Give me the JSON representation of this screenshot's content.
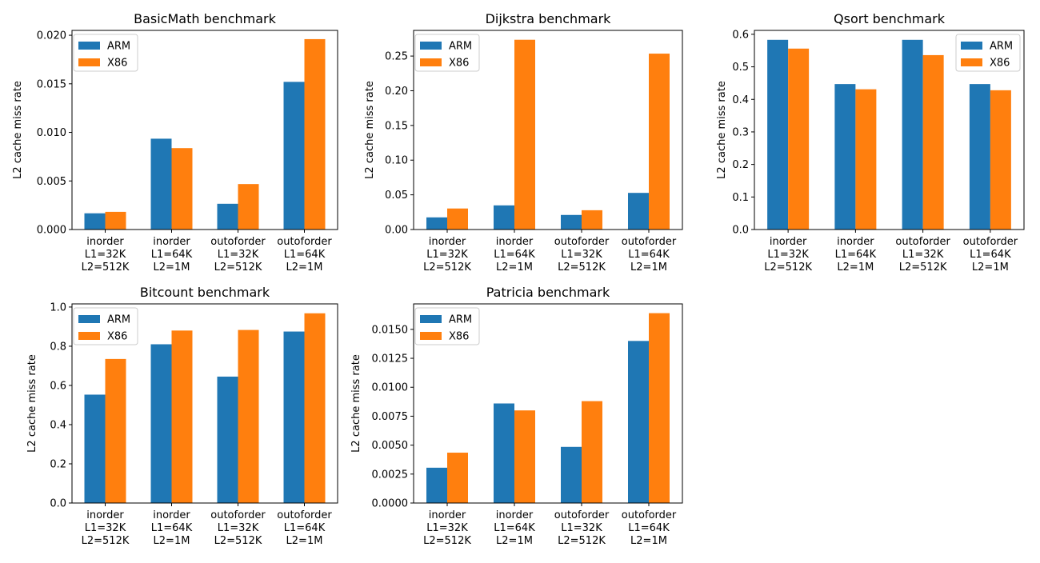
{
  "chart_data": [
    {
      "type": "bar",
      "title": "BasicMath benchmark",
      "xlabel": "",
      "ylabel": "L2 cache miss rate",
      "categories": [
        "inorder\nL1=32K\nL2=512K",
        "inorder\nL1=64K\nL2=1M",
        "outoforder\nL1=32K\nL2=512K",
        "outoforder\nL1=64K\nL2=1M"
      ],
      "series": [
        {
          "name": "ARM",
          "values": [
            0.00167,
            0.00935,
            0.00265,
            0.0152
          ]
        },
        {
          "name": "X86",
          "values": [
            0.00182,
            0.00838,
            0.00468,
            0.0196
          ]
        }
      ],
      "ylim": [
        0,
        0.0205
      ],
      "yticks": [
        "0.000",
        "0.005",
        "0.010",
        "0.015",
        "0.020"
      ],
      "ytick_values": [
        0,
        0.005,
        0.01,
        0.015,
        0.02
      ],
      "legend": "upper-left",
      "grid": false
    },
    {
      "type": "bar",
      "title": "Dijkstra benchmark",
      "xlabel": "",
      "ylabel": "L2 cache miss rate",
      "categories": [
        "inorder\nL1=32K\nL2=512K",
        "inorder\nL1=64K\nL2=1M",
        "outoforder\nL1=32K\nL2=512K",
        "outoforder\nL1=64K\nL2=1M"
      ],
      "series": [
        {
          "name": "ARM",
          "values": [
            0.0175,
            0.0348,
            0.021,
            0.0528
          ]
        },
        {
          "name": "X86",
          "values": [
            0.0303,
            0.2735,
            0.0278,
            0.2535
          ]
        }
      ],
      "ylim": [
        0,
        0.287
      ],
      "yticks": [
        "0.00",
        "0.05",
        "0.10",
        "0.15",
        "0.20",
        "0.25"
      ],
      "ytick_values": [
        0,
        0.05,
        0.1,
        0.15,
        0.2,
        0.25
      ],
      "legend": "upper-left",
      "grid": false
    },
    {
      "type": "bar",
      "title": "Qsort benchmark",
      "xlabel": "",
      "ylabel": "L2 cache miss rate",
      "categories": [
        "inorder\nL1=32K\nL2=512K",
        "inorder\nL1=64K\nL2=1M",
        "outoforder\nL1=32K\nL2=512K",
        "outoforder\nL1=64K\nL2=1M"
      ],
      "series": [
        {
          "name": "ARM",
          "values": [
            0.583,
            0.447,
            0.583,
            0.447
          ]
        },
        {
          "name": "X86",
          "values": [
            0.556,
            0.431,
            0.536,
            0.428
          ]
        }
      ],
      "ylim": [
        0,
        0.612
      ],
      "yticks": [
        "0.0",
        "0.1",
        "0.2",
        "0.3",
        "0.4",
        "0.5",
        "0.6"
      ],
      "ytick_values": [
        0,
        0.1,
        0.2,
        0.3,
        0.4,
        0.5,
        0.6
      ],
      "legend": "upper-right",
      "grid": false
    },
    {
      "type": "bar",
      "title": "Bitcount benchmark",
      "xlabel": "",
      "ylabel": "L2 cache miss rate",
      "categories": [
        "inorder\nL1=32K\nL2=512K",
        "inorder\nL1=64K\nL2=1M",
        "outoforder\nL1=32K\nL2=512K",
        "outoforder\nL1=64K\nL2=1M"
      ],
      "series": [
        {
          "name": "ARM",
          "values": [
            0.553,
            0.81,
            0.645,
            0.875
          ]
        },
        {
          "name": "X86",
          "values": [
            0.735,
            0.88,
            0.883,
            0.968
          ]
        }
      ],
      "ylim": [
        0,
        1.016
      ],
      "yticks": [
        "0.0",
        "0.2",
        "0.4",
        "0.6",
        "0.8",
        "1.0"
      ],
      "ytick_values": [
        0,
        0.2,
        0.4,
        0.6,
        0.8,
        1.0
      ],
      "legend": "upper-left",
      "grid": false
    },
    {
      "type": "bar",
      "title": "Patricia benchmark",
      "xlabel": "",
      "ylabel": "L2 cache miss rate",
      "categories": [
        "inorder\nL1=32K\nL2=512K",
        "inorder\nL1=64K\nL2=1M",
        "outoforder\nL1=32K\nL2=512K",
        "outoforder\nL1=64K\nL2=1M"
      ],
      "series": [
        {
          "name": "ARM",
          "values": [
            0.00305,
            0.0086,
            0.00485,
            0.014
          ]
        },
        {
          "name": "X86",
          "values": [
            0.00435,
            0.008,
            0.0088,
            0.0164
          ]
        }
      ],
      "ylim": [
        0,
        0.0172
      ],
      "yticks": [
        "0.0000",
        "0.0025",
        "0.0050",
        "0.0075",
        "0.0100",
        "0.0125",
        "0.0150"
      ],
      "ytick_values": [
        0,
        0.0025,
        0.005,
        0.0075,
        0.01,
        0.0125,
        0.015
      ],
      "legend": "upper-left",
      "grid": false
    }
  ],
  "colors": {
    "ARM": "#1f77b4",
    "X86": "#ff7f0e"
  }
}
